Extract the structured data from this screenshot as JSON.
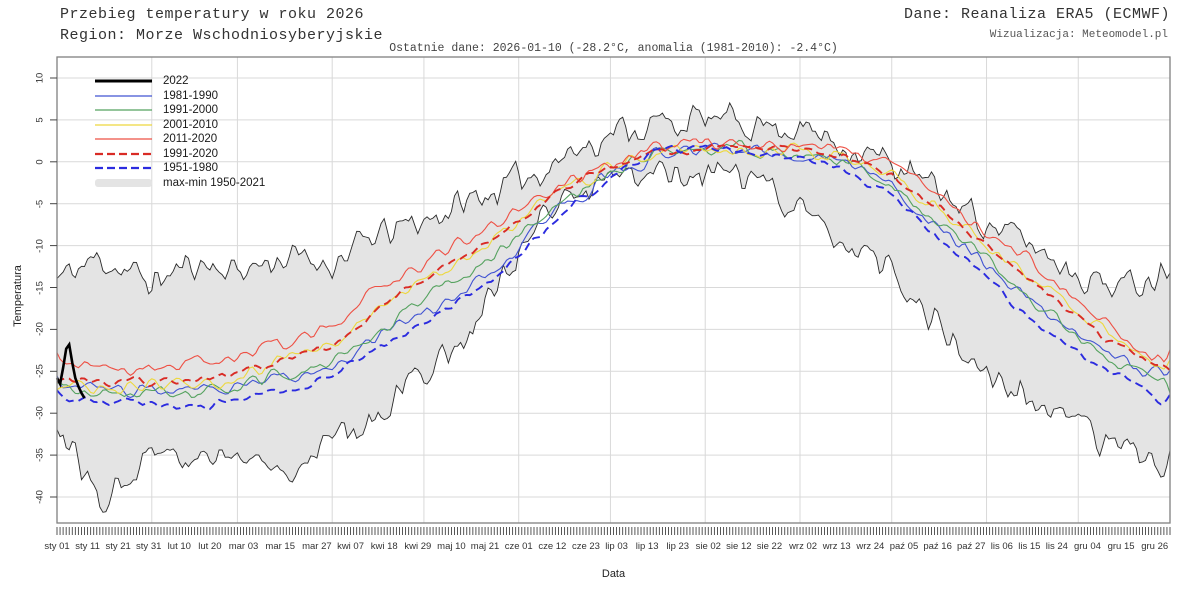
{
  "header": {
    "title": "Przebieg temperatury w roku 2026",
    "region": "Region: Morze Wschodniosyberyjskie",
    "source": "Dane: Reanaliza ERA5 (ECMWF)",
    "visualization": "Wizualizacja: Meteomodel.pl",
    "last_data": "Ostatnie dane: 2026-01-10 (-28.2°C, anomalia (1981-2010): -2.4°C)"
  },
  "axes": {
    "y_label": "Temperatura",
    "x_label": "Data",
    "y_ticks": [
      10,
      5,
      0,
      -5,
      -10,
      -15,
      -20,
      -25,
      -30,
      -35,
      -40
    ],
    "x_ticks": [
      {
        "label": "sty 01",
        "day": 1
      },
      {
        "label": "sty 11",
        "day": 11
      },
      {
        "label": "sty 21",
        "day": 21
      },
      {
        "label": "sty 31",
        "day": 31
      },
      {
        "label": "lut 10",
        "day": 41
      },
      {
        "label": "lut 20",
        "day": 51
      },
      {
        "label": "mar 03",
        "day": 62
      },
      {
        "label": "mar 15",
        "day": 74
      },
      {
        "label": "mar 27",
        "day": 86
      },
      {
        "label": "kwi 07",
        "day": 97
      },
      {
        "label": "kwi 18",
        "day": 108
      },
      {
        "label": "kwi 29",
        "day": 119
      },
      {
        "label": "maj 10",
        "day": 130
      },
      {
        "label": "maj 21",
        "day": 141
      },
      {
        "label": "cze 01",
        "day": 152
      },
      {
        "label": "cze 12",
        "day": 163
      },
      {
        "label": "cze 23",
        "day": 174
      },
      {
        "label": "lip 03",
        "day": 184
      },
      {
        "label": "lip 13",
        "day": 194
      },
      {
        "label": "lip 23",
        "day": 204
      },
      {
        "label": "sie 02",
        "day": 214
      },
      {
        "label": "sie 12",
        "day": 224
      },
      {
        "label": "sie 22",
        "day": 234
      },
      {
        "label": "wrz 02",
        "day": 245
      },
      {
        "label": "wrz 13",
        "day": 256
      },
      {
        "label": "wrz 24",
        "day": 267
      },
      {
        "label": "paź 05",
        "day": 278
      },
      {
        "label": "paź 16",
        "day": 289
      },
      {
        "label": "paź 27",
        "day": 300
      },
      {
        "label": "lis 06",
        "day": 310
      },
      {
        "label": "lis 15",
        "day": 319
      },
      {
        "label": "lis 24",
        "day": 328
      },
      {
        "label": "gru 04",
        "day": 338
      },
      {
        "label": "gru 15",
        "day": 349
      },
      {
        "label": "gru 26",
        "day": 360
      }
    ]
  },
  "legend": [
    {
      "label": "2022",
      "color": "#000000",
      "style": "solid",
      "width": 3
    },
    {
      "label": "1981-1990",
      "color": "#4153d2",
      "style": "solid",
      "width": 1.3
    },
    {
      "label": "1991-2000",
      "color": "#55a25f",
      "style": "solid",
      "width": 1.3
    },
    {
      "label": "2001-2010",
      "color": "#edd83e",
      "style": "solid",
      "width": 1.3
    },
    {
      "label": "2011-2020",
      "color": "#ee5044",
      "style": "solid",
      "width": 1.3
    },
    {
      "label": "1991-2020",
      "color": "#d92b25",
      "style": "dashed",
      "width": 2.2
    },
    {
      "label": "1951-1980",
      "color": "#2b2bdf",
      "style": "dashed",
      "width": 2.2
    },
    {
      "label": "max-min 1950-2021",
      "color": "#e4e4e4",
      "style": "band",
      "width": 8
    }
  ],
  "chart_data": {
    "type": "line",
    "title": "Przebieg temperatury w roku 2026",
    "subtitle": "Region: Morze Wschodniosyberyjskie",
    "xlabel": "Data",
    "ylabel": "Temperatura",
    "ylim": [
      -43,
      12.5
    ],
    "x_unit": "day-of-year",
    "grid": true,
    "legend_position": "upper-left",
    "month_gridline_days": [
      32,
      60,
      91,
      121,
      152,
      182,
      213,
      244,
      274,
      305,
      335
    ],
    "control_days": [
      1,
      15,
      32,
      46,
      60,
      74,
      91,
      105,
      121,
      135,
      152,
      166,
      182,
      196,
      213,
      227,
      244,
      258,
      274,
      288,
      305,
      319,
      335,
      349,
      365
    ],
    "series": [
      {
        "name": "2022",
        "color": "#000000",
        "style": "solid",
        "width": 2.6,
        "noise": 0,
        "days": [
          1,
          2,
          3,
          4,
          5,
          6,
          7,
          8,
          9,
          10
        ],
        "values": [
          -25.8,
          -26.5,
          -24.6,
          -22.3,
          -21.8,
          -24.0,
          -25.8,
          -26.8,
          -27.6,
          -28.2
        ]
      },
      {
        "name": "1981-1990",
        "color": "#4153d2",
        "style": "solid",
        "width": 1.1,
        "noise": 0.8,
        "values": [
          -26.3,
          -26.8,
          -27.3,
          -27.2,
          -26.3,
          -25.6,
          -24.4,
          -21.0,
          -18.0,
          -15.0,
          -10.4,
          -5.4,
          -1.6,
          0.9,
          1.4,
          1.2,
          0.7,
          -0.2,
          -3.1,
          -7.2,
          -12.2,
          -16.2,
          -20.6,
          -23.6,
          -26.2
        ]
      },
      {
        "name": "1991-2000",
        "color": "#55a25f",
        "style": "solid",
        "width": 1.1,
        "noise": 0.8,
        "values": [
          -26.8,
          -27.6,
          -27.4,
          -27.8,
          -26.6,
          -25.7,
          -24.2,
          -20.5,
          -16.5,
          -13.5,
          -8.8,
          -4.2,
          -1.2,
          1.0,
          1.4,
          1.3,
          0.8,
          -0.1,
          -3.0,
          -7.0,
          -12.0,
          -16.4,
          -21.0,
          -24.4,
          -26.8
        ]
      },
      {
        "name": "2001-2010",
        "color": "#edd83e",
        "style": "solid",
        "width": 1.1,
        "noise": 0.8,
        "values": [
          -26.2,
          -27.2,
          -26.8,
          -27.0,
          -25.8,
          -23.2,
          -21.8,
          -18.0,
          -14.5,
          -11.5,
          -7.4,
          -3.4,
          -0.6,
          1.2,
          1.8,
          1.7,
          1.3,
          0.5,
          -1.6,
          -5.0,
          -9.6,
          -13.6,
          -18.2,
          -21.6,
          -24.6
        ]
      },
      {
        "name": "2011-2020",
        "color": "#ee5044",
        "style": "solid",
        "width": 1.1,
        "noise": 0.8,
        "values": [
          -24.2,
          -24.6,
          -24.8,
          -24.4,
          -23.6,
          -21.8,
          -19.6,
          -15.5,
          -12.0,
          -9.0,
          -5.8,
          -2.8,
          -0.2,
          1.4,
          1.9,
          2.1,
          1.9,
          1.3,
          -0.4,
          -3.4,
          -8.0,
          -11.8,
          -16.8,
          -20.8,
          -24.0
        ]
      },
      {
        "name": "1991-2020",
        "color": "#d92b25",
        "style": "dashed",
        "width": 1.9,
        "noise": 0.45,
        "values": [
          -25.6,
          -26.2,
          -26.2,
          -26.2,
          -25.2,
          -23.8,
          -21.9,
          -17.5,
          -14.0,
          -11.0,
          -7.2,
          -3.4,
          -0.7,
          1.2,
          1.7,
          1.6,
          1.3,
          0.5,
          -1.7,
          -5.1,
          -9.9,
          -14.0,
          -18.7,
          -22.3,
          -25.1
        ]
      },
      {
        "name": "1951-1980",
        "color": "#2b2bdf",
        "style": "dashed",
        "width": 1.9,
        "noise": 0.5,
        "values": [
          -28.2,
          -28.6,
          -29.0,
          -29.2,
          -28.2,
          -27.2,
          -25.8,
          -22.5,
          -19.5,
          -16.0,
          -11.6,
          -6.0,
          -2.0,
          1.0,
          1.6,
          1.3,
          0.6,
          -0.8,
          -4.2,
          -8.6,
          -13.8,
          -18.4,
          -22.8,
          -25.8,
          -28.8
        ]
      }
    ],
    "envelope": {
      "name": "max-min 1950-2021",
      "fill": "#e4e4e4",
      "line_color": "#2a2a2a",
      "noise": 1.4,
      "max": [
        -14.0,
        -11.5,
        -14.5,
        -12.0,
        -13.0,
        -11.5,
        -12.0,
        -9.0,
        -7.0,
        -4.8,
        -2.2,
        0.5,
        3.5,
        4.5,
        5.0,
        4.8,
        4.0,
        2.2,
        -0.2,
        -3.2,
        -7.2,
        -9.8,
        -13.2,
        -15.0,
        -12.5
      ],
      "min": [
        -31.5,
        -40.3,
        -34.0,
        -35.5,
        -35.0,
        -36.8,
        -33.0,
        -30.0,
        -24.8,
        -21.0,
        -11.0,
        -5.0,
        -1.8,
        -0.8,
        -1.2,
        -2.2,
        -5.2,
        -9.5,
        -13.8,
        -19.0,
        -25.5,
        -28.5,
        -32.0,
        -35.0,
        -35.5
      ]
    },
    "colors": {
      "grid": "#d9d9d9",
      "frame": "#808080",
      "tick": "#444444",
      "background": "#ffffff"
    }
  }
}
